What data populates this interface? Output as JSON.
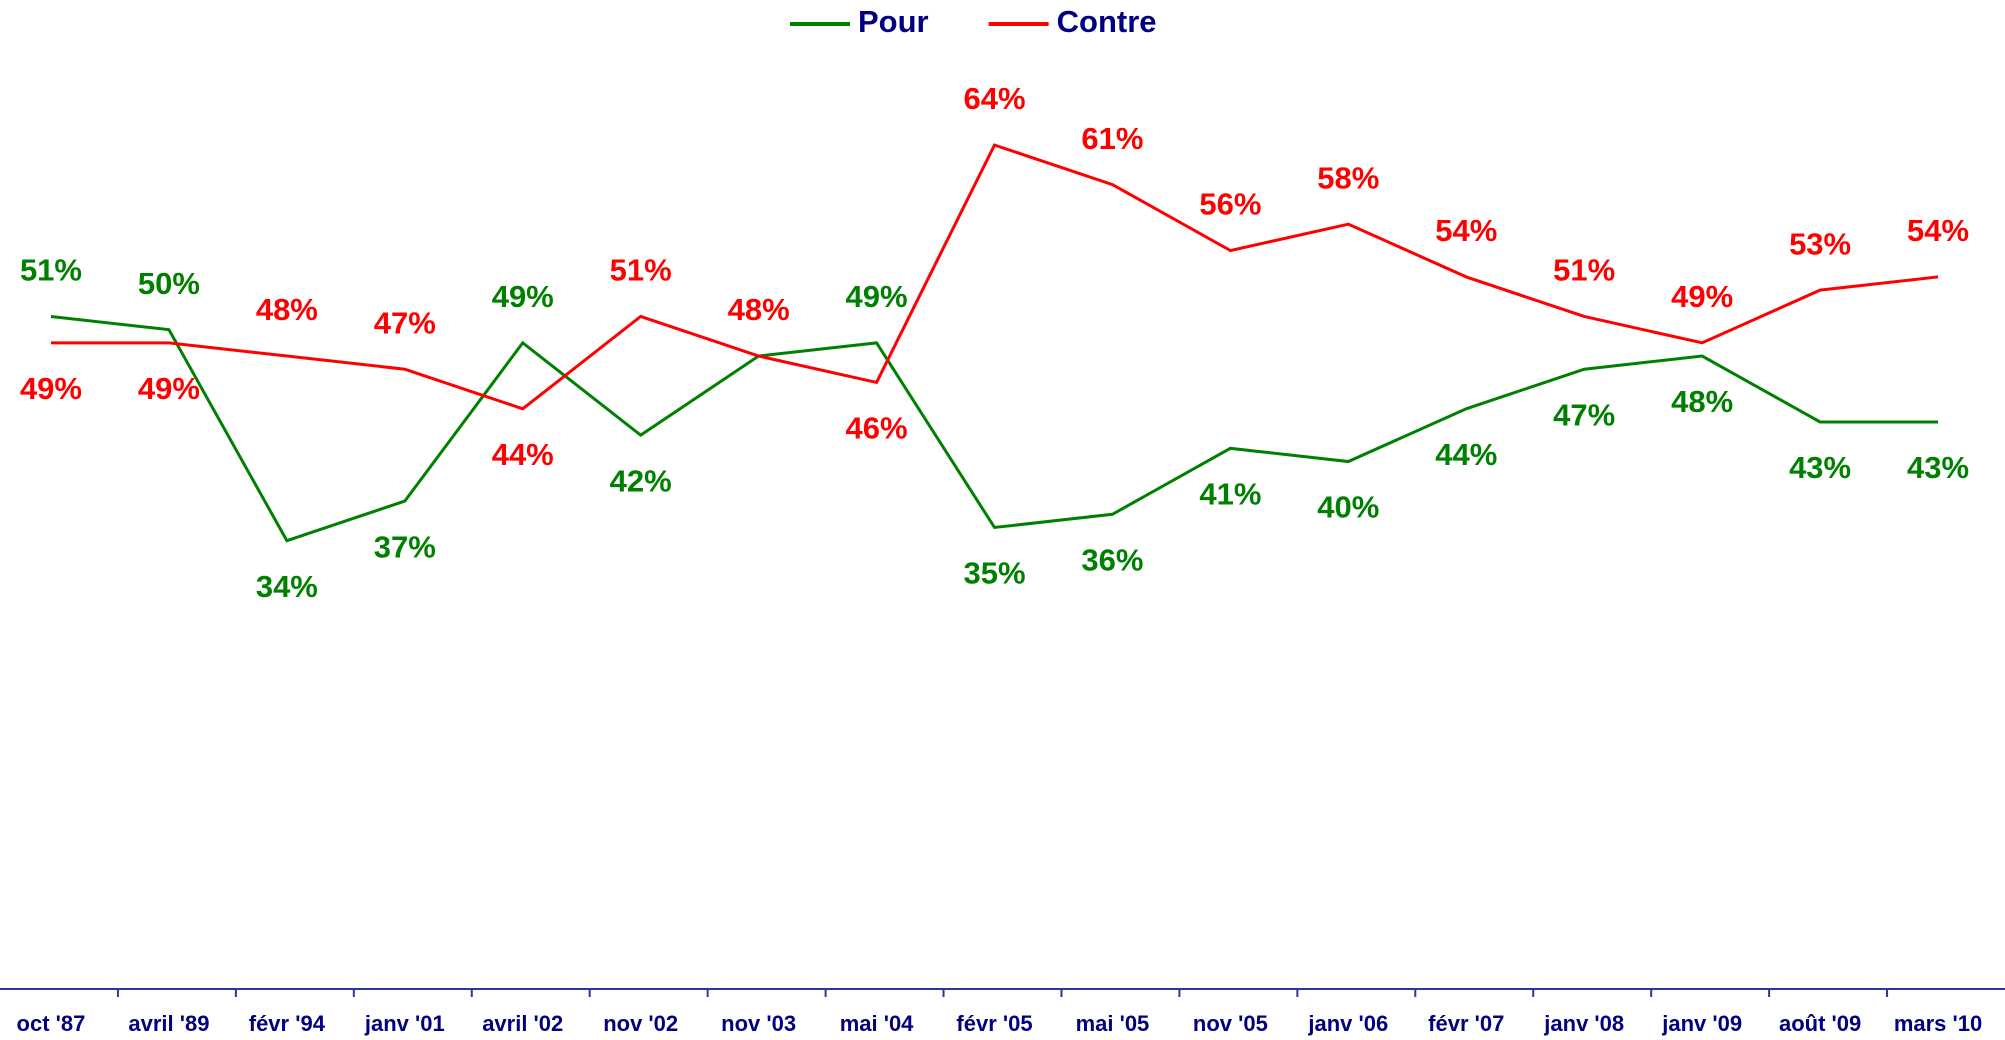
{
  "chart_data": {
    "type": "line",
    "categories": [
      "oct '87",
      "avril '89",
      "févr '94",
      "janv '01",
      "avril '02",
      "nov '02",
      "nov '03",
      "mai '04",
      "févr '05",
      "mai '05",
      "nov '05",
      "janv '06",
      "févr '07",
      "janv '08",
      "janv '09",
      "août '09",
      "mars '10"
    ],
    "series": [
      {
        "name": "Pour",
        "color": "#008000",
        "values": [
          51,
          50,
          34,
          37,
          49,
          42,
          48,
          49,
          35,
          36,
          41,
          40,
          44,
          47,
          48,
          43,
          43
        ],
        "value_labels": [
          "51%",
          "50%",
          "34%",
          "37%",
          "49%",
          "42%",
          null,
          "49%",
          "35%",
          "36%",
          "41%",
          "40%",
          "44%",
          "47%",
          "48%",
          "43%",
          "43%"
        ]
      },
      {
        "name": "Contre",
        "color": "#ff0000",
        "values": [
          49,
          49,
          48,
          47,
          44,
          51,
          48,
          46,
          64,
          61,
          56,
          58,
          54,
          51,
          49,
          53,
          54
        ],
        "value_labels": [
          "49%",
          "49%",
          "48%",
          "47%",
          "44%",
          "51%",
          "48%",
          "46%",
          "64%",
          "61%",
          "56%",
          "58%",
          "54%",
          "51%",
          "49%",
          "53%",
          "54%"
        ]
      }
    ],
    "ylim": [
      0,
      75
    ],
    "legend": "top"
  }
}
